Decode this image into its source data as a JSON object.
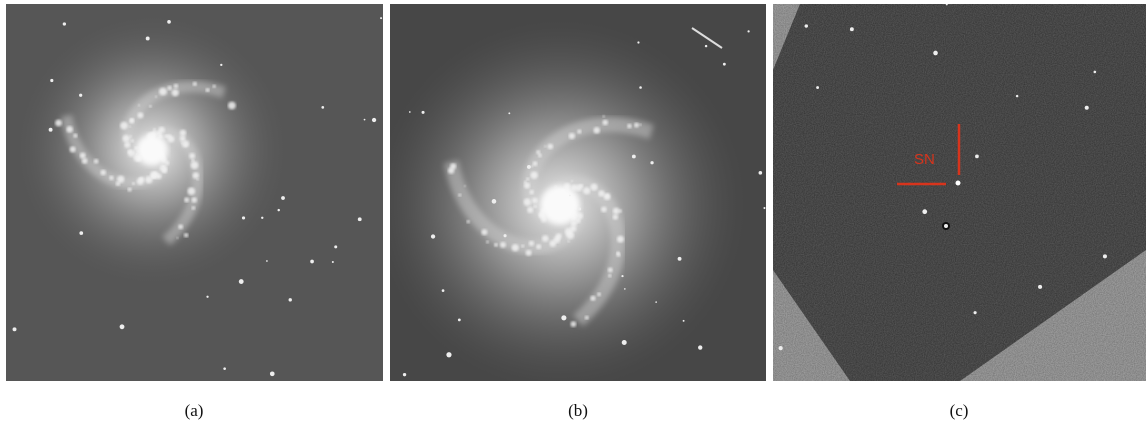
{
  "panels": [
    {
      "caption": "(a)"
    },
    {
      "caption": "(b)"
    },
    {
      "caption": "(c)",
      "annotation": "SN"
    }
  ]
}
